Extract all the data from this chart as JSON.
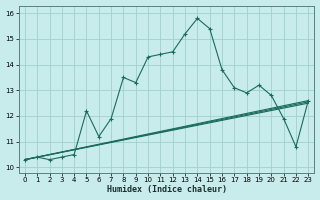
{
  "xlabel": "Humidex (Indice chaleur)",
  "bg_color": "#c8ecec",
  "grid_color": "#a0cfcf",
  "line_color": "#1a6b5a",
  "xlim": [
    -0.5,
    23.5
  ],
  "ylim": [
    9.8,
    16.3
  ],
  "yticks": [
    10,
    11,
    12,
    13,
    14,
    15,
    16
  ],
  "xticks": [
    0,
    1,
    2,
    3,
    4,
    5,
    6,
    7,
    8,
    9,
    10,
    11,
    12,
    13,
    14,
    15,
    16,
    17,
    18,
    19,
    20,
    21,
    22,
    23
  ],
  "curve1_x": [
    0,
    1,
    2,
    3,
    4,
    5,
    6,
    7,
    8,
    9,
    10,
    11,
    12,
    13,
    14,
    15,
    16,
    17,
    18,
    19,
    20,
    21,
    22,
    23
  ],
  "curve1_y": [
    10.3,
    10.4,
    10.3,
    10.4,
    10.5,
    12.2,
    11.2,
    11.9,
    13.5,
    13.3,
    14.3,
    14.4,
    14.5,
    15.2,
    15.8,
    15.4,
    13.8,
    13.1,
    12.9,
    13.2,
    12.8,
    11.9,
    10.8,
    12.6
  ],
  "curve2_x": [
    0,
    23
  ],
  "curve2_y": [
    10.3,
    12.5
  ],
  "curve3_x": [
    0,
    23
  ],
  "curve3_y": [
    10.3,
    12.55
  ],
  "curve4_x": [
    0,
    23
  ],
  "curve4_y": [
    10.3,
    12.6
  ]
}
